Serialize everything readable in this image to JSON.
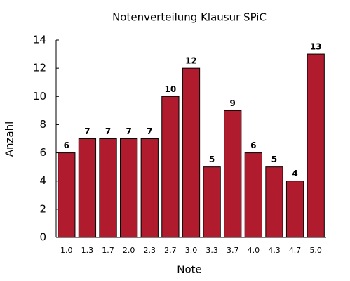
{
  "chart_data": {
    "type": "bar",
    "title": "Notenverteilung Klausur SPiC",
    "x_label": "Note",
    "y_label": "Anzahl",
    "categories": [
      "1.0",
      "1.3",
      "1.7",
      "2.0",
      "2.3",
      "2.7",
      "3.0",
      "3.3",
      "3.7",
      "4.0",
      "4.3",
      "4.7",
      "5.0"
    ],
    "values": [
      6,
      7,
      7,
      7,
      7,
      10,
      12,
      5,
      9,
      6,
      5,
      4,
      13
    ],
    "color": "#b01c2e",
    "ylim": [
      0,
      14
    ],
    "yticks": [
      0,
      2,
      4,
      6,
      8,
      10,
      12,
      14
    ],
    "grid": false,
    "data_labels": true
  }
}
